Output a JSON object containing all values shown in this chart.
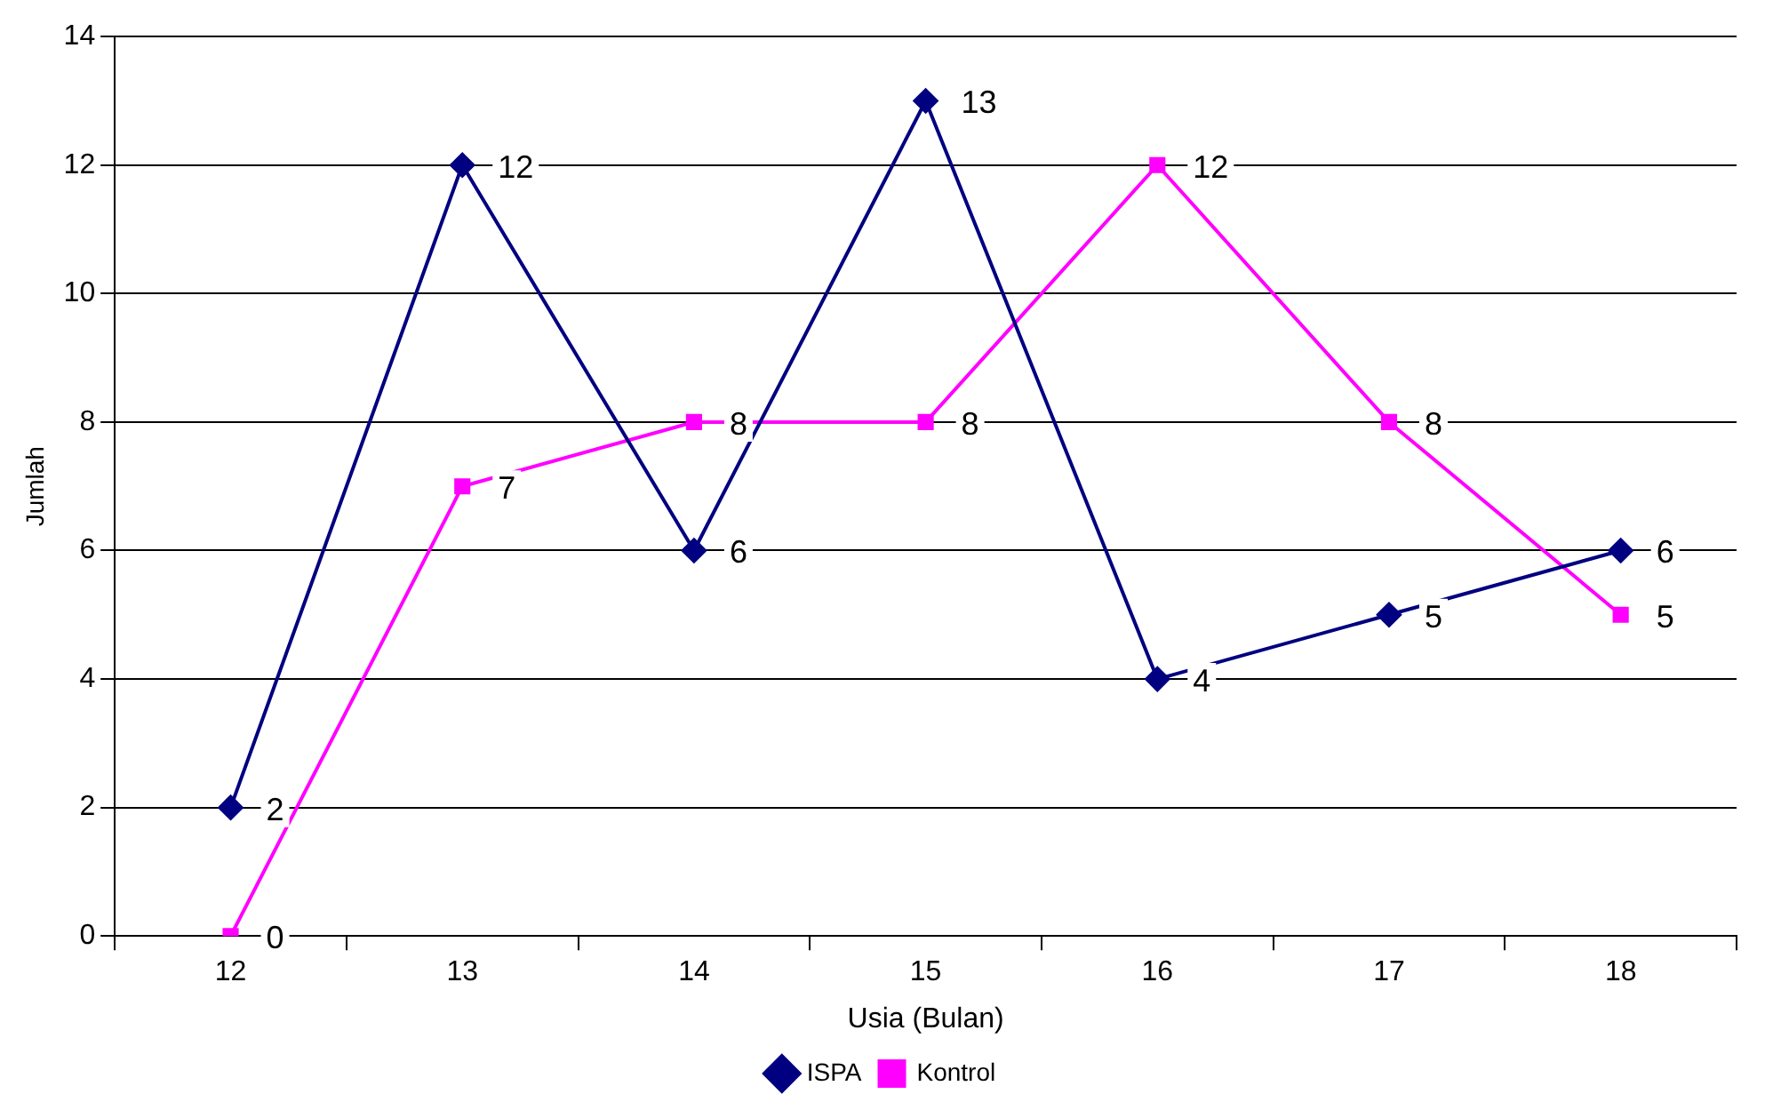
{
  "chart_data": {
    "type": "line",
    "xlabel": "Usia (Bulan)",
    "ylabel": "Jumlah",
    "categories": [
      "12",
      "13",
      "14",
      "15",
      "16",
      "17",
      "18"
    ],
    "series": [
      {
        "name": "ISPA",
        "color": "#000080",
        "marker": "diamond",
        "values": [
          2,
          12,
          6,
          13,
          4,
          5,
          6
        ]
      },
      {
        "name": "Kontrol",
        "color": "#ff00ff",
        "marker": "square",
        "values": [
          0,
          7,
          8,
          8,
          12,
          8,
          5
        ]
      }
    ],
    "ylim": [
      0,
      14
    ],
    "yticks": [
      0,
      2,
      4,
      6,
      8,
      10,
      12,
      14
    ],
    "grid": "y",
    "legend": "bottom",
    "data_labels": true,
    "line_style": "solid"
  }
}
